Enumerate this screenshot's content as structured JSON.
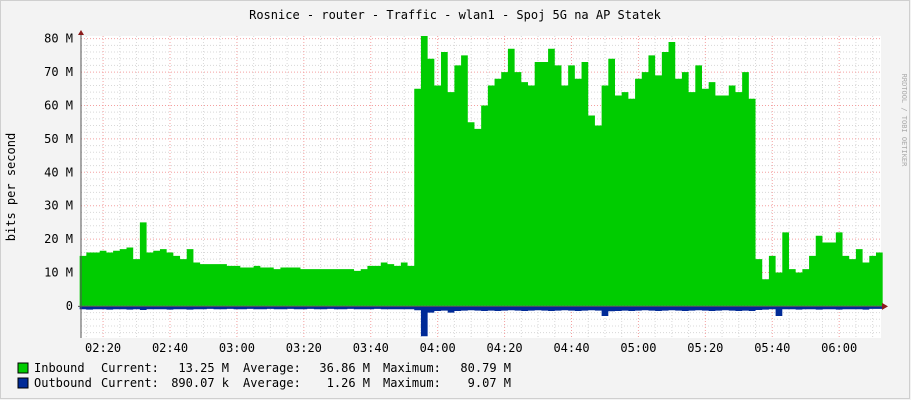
{
  "chart_data": {
    "type": "area",
    "title": "Rosnice - router - Traffic - wlan1 - Spoj 5G na AP Statek",
    "ylabel": "bits per second",
    "xlabel": "",
    "watermark": "RRDTOOL / TOBI OETIKER",
    "xlim": [
      "02:13",
      "06:12"
    ],
    "ylim": [
      -9.6,
      80.8
    ],
    "y_unit": "M",
    "grid": true,
    "legend_placement": "bottom-left",
    "x_ticks": [
      "02:20",
      "02:40",
      "03:00",
      "03:20",
      "03:40",
      "04:00",
      "04:20",
      "04:40",
      "05:00",
      "05:20",
      "05:40",
      "06:00"
    ],
    "y_ticks": [
      {
        "value": 0,
        "label": "0"
      },
      {
        "value": 10,
        "label": "10 M"
      },
      {
        "value": 20,
        "label": "20 M"
      },
      {
        "value": 30,
        "label": "30 M"
      },
      {
        "value": 40,
        "label": "40 M"
      },
      {
        "value": 50,
        "label": "50 M"
      },
      {
        "value": 60,
        "label": "60 M"
      },
      {
        "value": 70,
        "label": "70 M"
      },
      {
        "value": 80,
        "label": "80 M"
      }
    ],
    "x": [
      "02:14",
      "02:16",
      "02:18",
      "02:20",
      "02:22",
      "02:24",
      "02:26",
      "02:28",
      "02:30",
      "02:32",
      "02:34",
      "02:36",
      "02:38",
      "02:40",
      "02:42",
      "02:44",
      "02:46",
      "02:48",
      "02:50",
      "02:52",
      "02:54",
      "02:56",
      "02:58",
      "03:00",
      "03:02",
      "03:04",
      "03:06",
      "03:08",
      "03:10",
      "03:12",
      "03:14",
      "03:16",
      "03:18",
      "03:20",
      "03:22",
      "03:24",
      "03:26",
      "03:28",
      "03:30",
      "03:32",
      "03:34",
      "03:36",
      "03:38",
      "03:40",
      "03:42",
      "03:44",
      "03:46",
      "03:48",
      "03:50",
      "03:52",
      "03:54",
      "03:56",
      "03:58",
      "04:00",
      "04:02",
      "04:04",
      "04:06",
      "04:08",
      "04:10",
      "04:12",
      "04:14",
      "04:16",
      "04:18",
      "04:20",
      "04:22",
      "04:24",
      "04:26",
      "04:28",
      "04:30",
      "04:32",
      "04:34",
      "04:36",
      "04:38",
      "04:40",
      "04:42",
      "04:44",
      "04:46",
      "04:48",
      "04:50",
      "04:52",
      "04:54",
      "04:56",
      "04:58",
      "05:00",
      "05:02",
      "05:04",
      "05:06",
      "05:08",
      "05:10",
      "05:12",
      "05:14",
      "05:16",
      "05:18",
      "05:20",
      "05:22",
      "05:24",
      "05:26",
      "05:28",
      "05:30",
      "05:32",
      "05:34",
      "05:36",
      "05:38",
      "05:40",
      "05:42",
      "05:44",
      "05:46",
      "05:48",
      "05:50",
      "05:52",
      "05:54",
      "05:56",
      "05:58",
      "06:00",
      "06:02",
      "06:04",
      "06:06",
      "06:08",
      "06:10",
      "06:12"
    ],
    "series": [
      {
        "name": "Inbound",
        "color": "#00cc00",
        "values": [
          15,
          16,
          16,
          16.5,
          16,
          16.5,
          17,
          17.5,
          14,
          25,
          16,
          16.5,
          17,
          16,
          15,
          14,
          17,
          13,
          12.5,
          12.5,
          12.5,
          12.5,
          12,
          12,
          11.5,
          11.5,
          12,
          11.5,
          11.5,
          11,
          11.5,
          11.5,
          11.5,
          11,
          11,
          11,
          11,
          11,
          11,
          11,
          11,
          10.5,
          11,
          12,
          12,
          13,
          12.5,
          12,
          13,
          12,
          65,
          80.8,
          74,
          66,
          76,
          64,
          72,
          75,
          55,
          53,
          60,
          66,
          68,
          70,
          77,
          70,
          67,
          66,
          73,
          73,
          77,
          72,
          66,
          72,
          68,
          73,
          57,
          54,
          66,
          74,
          63,
          64,
          62,
          68,
          70,
          75,
          69,
          76,
          79,
          68,
          70,
          64,
          72,
          65,
          67,
          63,
          63,
          66,
          64,
          70,
          62,
          14,
          8,
          15,
          10,
          22,
          11,
          10,
          11,
          15,
          21,
          19,
          19,
          22,
          15,
          14,
          17,
          13,
          15,
          16
        ]
      },
      {
        "name": "Outbound",
        "color": "#002a97",
        "values": [
          -1.0,
          -1.1,
          -1.0,
          -1.0,
          -1.1,
          -1.0,
          -1.0,
          -1.1,
          -1.0,
          -1.2,
          -1.0,
          -1.0,
          -1.0,
          -1.1,
          -1.0,
          -1.0,
          -1.1,
          -1.0,
          -1.0,
          -0.9,
          -1.0,
          -1.0,
          -0.9,
          -1.0,
          -1.0,
          -0.9,
          -1.0,
          -1.0,
          -0.9,
          -1.0,
          -1.0,
          -0.9,
          -1.0,
          -1.0,
          -0.9,
          -1.0,
          -1.0,
          -0.9,
          -1.0,
          -1.0,
          -0.9,
          -1.0,
          -1.0,
          -1.0,
          -0.9,
          -1.0,
          -1.0,
          -1.0,
          -1.0,
          -1.0,
          -1.3,
          -9.07,
          -2.0,
          -1.5,
          -1.4,
          -2.0,
          -1.5,
          -1.4,
          -1.3,
          -1.4,
          -1.5,
          -1.4,
          -1.5,
          -1.4,
          -1.3,
          -1.4,
          -1.5,
          -1.4,
          -1.3,
          -1.4,
          -1.5,
          -1.4,
          -1.3,
          -1.4,
          -1.5,
          -1.4,
          -1.3,
          -1.4,
          -3.0,
          -1.6,
          -1.5,
          -1.4,
          -1.5,
          -1.4,
          -1.3,
          -1.4,
          -1.5,
          -1.4,
          -1.3,
          -1.4,
          -1.5,
          -1.4,
          -1.3,
          -1.4,
          -1.5,
          -1.4,
          -1.3,
          -1.4,
          -1.5,
          -1.4,
          -1.5,
          -1.2,
          -1.1,
          -1.0,
          -3.0,
          -1.0,
          -1.0,
          -1.1,
          -1.0,
          -1.0,
          -1.1,
          -1.0,
          -1.0,
          -1.1,
          -1.0,
          -1.0,
          -1.0,
          -1.1,
          -0.9,
          -0.9
        ]
      }
    ],
    "legend": [
      {
        "label": "Inbound",
        "color": "#00cc00",
        "current_label": "Current:",
        "current": "13.25 M",
        "average_label": "Average:",
        "average": "36.86 M",
        "maximum_label": "Maximum:",
        "maximum": "80.79 M"
      },
      {
        "label": "Outbound",
        "color": "#002a97",
        "current_label": "Current:",
        "current": "890.07 k",
        "average_label": "Average:",
        "average": "1.26 M",
        "maximum_label": "Maximum:",
        "maximum": "9.07 M"
      }
    ]
  }
}
